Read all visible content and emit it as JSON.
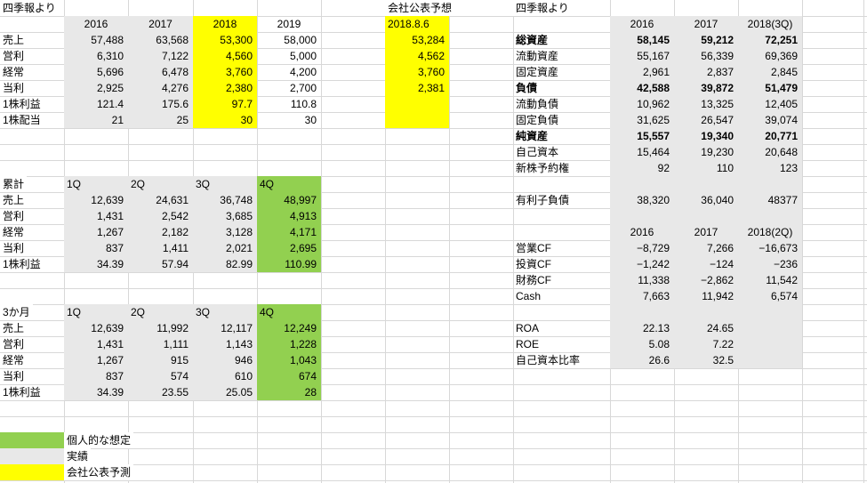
{
  "colors": {
    "gray": "#e8e8e8",
    "yellow": "#ffff00",
    "green": "#92d050",
    "gridline": "#d8d8d8",
    "text": "#000000",
    "background": "#ffffff"
  },
  "tables": {
    "shikiho_pl": {
      "title": "四季報より",
      "col_headers": [
        "2016",
        "2017",
        "2018",
        "2019"
      ],
      "rows": [
        {
          "label": "売上",
          "values": [
            "57,488",
            "63,568",
            "53,300",
            "58,000"
          ]
        },
        {
          "label": "営利",
          "values": [
            "6,310",
            "7,122",
            "4,560",
            "5,000"
          ]
        },
        {
          "label": "経常",
          "values": [
            "5,696",
            "6,478",
            "3,760",
            "4,200"
          ]
        },
        {
          "label": "当利",
          "values": [
            "2,925",
            "4,276",
            "2,380",
            "2,700"
          ]
        },
        {
          "label": "1株利益",
          "values": [
            "121.4",
            "175.6",
            "97.7",
            "110.8"
          ]
        },
        {
          "label": "1株配当",
          "values": [
            "21",
            "25",
            "30",
            "30"
          ]
        }
      ]
    },
    "company_forecast": {
      "title": "会社公表予想",
      "date_header": "2018.8.6",
      "values": [
        "53,284",
        "4,562",
        "3,760",
        "2,381"
      ]
    },
    "shikiho_bs": {
      "title": "四季報より",
      "col_headers": [
        "2016",
        "2017",
        "2018(3Q)"
      ],
      "rows": [
        {
          "label": "総資産",
          "bold": true,
          "values": [
            "58,145",
            "59,212",
            "72,251"
          ]
        },
        {
          "label": "流動資産",
          "values": [
            "55,167",
            "56,339",
            "69,369"
          ]
        },
        {
          "label": "固定資産",
          "values": [
            "2,961",
            "2,837",
            "2,845"
          ]
        },
        {
          "label": "負債",
          "bold": true,
          "values": [
            "42,588",
            "39,872",
            "51,479"
          ]
        },
        {
          "label": "流動負債",
          "values": [
            "10,962",
            "13,325",
            "12,405"
          ]
        },
        {
          "label": "固定負債",
          "values": [
            "31,625",
            "26,547",
            "39,074"
          ]
        },
        {
          "label": "純資産",
          "bold": true,
          "values": [
            "15,557",
            "19,340",
            "20,771"
          ]
        },
        {
          "label": "自己資本",
          "values": [
            "15,464",
            "19,230",
            "20,648"
          ]
        },
        {
          "label": "新株予約権",
          "values": [
            "92",
            "110",
            "123"
          ]
        }
      ]
    },
    "interest_debt": {
      "rows": [
        {
          "label": "有利子負債",
          "values": [
            "38,320",
            "36,040",
            "48377"
          ]
        }
      ]
    },
    "cashflow": {
      "col_headers": [
        "2016",
        "2017",
        "2018(2Q)"
      ],
      "rows": [
        {
          "label": "営業CF",
          "values": [
            "−8,729",
            "7,266",
            "−16,673"
          ]
        },
        {
          "label": "投資CF",
          "values": [
            "−1,242",
            "−124",
            "−236"
          ]
        },
        {
          "label": "財務CF",
          "values": [
            "11,338",
            "−2,862",
            "11,542"
          ]
        },
        {
          "label": "Cash",
          "values": [
            "7,663",
            "11,942",
            "6,574"
          ]
        }
      ]
    },
    "ratios": {
      "rows": [
        {
          "label": "ROA",
          "values": [
            "22.13",
            "24.65"
          ]
        },
        {
          "label": "ROE",
          "values": [
            "5.08",
            "7.22"
          ]
        },
        {
          "label": "自己資本比率",
          "values": [
            "26.6",
            "32.5"
          ]
        }
      ]
    },
    "cumulative": {
      "title": "累計",
      "col_headers": [
        "1Q",
        "2Q",
        "3Q",
        "4Q"
      ],
      "rows": [
        {
          "label": "売上",
          "values": [
            "12,639",
            "24,631",
            "36,748",
            "48,997"
          ]
        },
        {
          "label": "営利",
          "values": [
            "1,431",
            "2,542",
            "3,685",
            "4,913"
          ]
        },
        {
          "label": "経常",
          "values": [
            "1,267",
            "2,182",
            "3,128",
            "4,171"
          ]
        },
        {
          "label": "当利",
          "values": [
            "837",
            "1,411",
            "2,021",
            "2,695"
          ]
        },
        {
          "label": "1株利益",
          "values": [
            "34.39",
            "57.94",
            "82.99",
            "110.99"
          ]
        }
      ]
    },
    "three_month": {
      "title": "3か月",
      "col_headers": [
        "1Q",
        "2Q",
        "3Q",
        "4Q"
      ],
      "rows": [
        {
          "label": "売上",
          "values": [
            "12,639",
            "11,992",
            "12,117",
            "12,249"
          ]
        },
        {
          "label": "営利",
          "values": [
            "1,431",
            "1,111",
            "1,143",
            "1,228"
          ]
        },
        {
          "label": "経常",
          "values": [
            "1,267",
            "915",
            "946",
            "1,043"
          ]
        },
        {
          "label": "当利",
          "values": [
            "837",
            "574",
            "610",
            "674"
          ]
        },
        {
          "label": "1株利益",
          "values": [
            "34.39",
            "23.55",
            "25.05",
            "28"
          ]
        }
      ]
    }
  },
  "legend": [
    {
      "color_name": "green",
      "color": "#92d050",
      "label": "個人的な想定"
    },
    {
      "color_name": "gray",
      "color": "#e8e8e8",
      "label": "実績"
    },
    {
      "color_name": "yellow",
      "color": "#ffff00",
      "label": "会社公表予測"
    }
  ]
}
